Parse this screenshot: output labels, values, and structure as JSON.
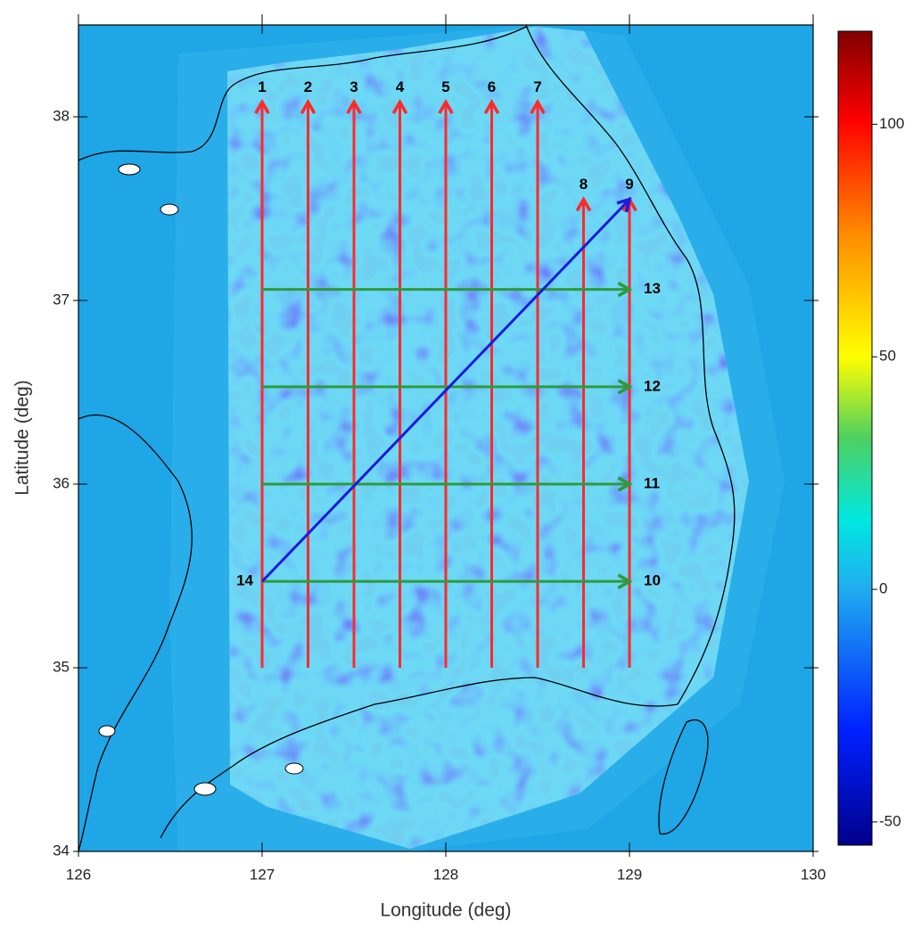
{
  "map": {
    "xlabel": "Longitude (deg)",
    "ylabel": "Latitude (deg)",
    "xlim": [
      126,
      130
    ],
    "ylim": [
      34,
      38.5
    ],
    "xticks": [
      126,
      127,
      128,
      129,
      130
    ],
    "yticks": [
      34,
      35,
      36,
      37,
      38
    ],
    "colorbar": {
      "clim": [
        -55,
        120
      ],
      "ticks": [
        -50,
        0,
        50,
        100
      ]
    },
    "profiles": [
      {
        "label": "1",
        "color": "#ff2a2a",
        "x": [
          127.0,
          127.0
        ],
        "y": [
          35.0,
          38.08
        ]
      },
      {
        "label": "2",
        "color": "#ff2a2a",
        "x": [
          127.25,
          127.25
        ],
        "y": [
          35.0,
          38.08
        ]
      },
      {
        "label": "3",
        "color": "#ff2a2a",
        "x": [
          127.5,
          127.5
        ],
        "y": [
          35.0,
          38.08
        ]
      },
      {
        "label": "4",
        "color": "#ff2a2a",
        "x": [
          127.75,
          127.75
        ],
        "y": [
          35.0,
          38.08
        ]
      },
      {
        "label": "5",
        "color": "#ff2a2a",
        "x": [
          128.0,
          128.0
        ],
        "y": [
          35.0,
          38.08
        ]
      },
      {
        "label": "6",
        "color": "#ff2a2a",
        "x": [
          128.25,
          128.25
        ],
        "y": [
          35.0,
          38.08
        ]
      },
      {
        "label": "7",
        "color": "#ff2a2a",
        "x": [
          128.5,
          128.5
        ],
        "y": [
          35.0,
          38.08
        ]
      },
      {
        "label": "8",
        "color": "#ff2a2a",
        "x": [
          128.75,
          128.75
        ],
        "y": [
          35.0,
          37.55
        ]
      },
      {
        "label": "9",
        "color": "#ff2a2a",
        "x": [
          129.0,
          129.0
        ],
        "y": [
          35.0,
          37.55
        ]
      },
      {
        "label": "10",
        "color": "#2e9a3a",
        "x": [
          127.0,
          129.0
        ],
        "y": [
          35.47,
          35.47
        ]
      },
      {
        "label": "11",
        "color": "#2e9a3a",
        "x": [
          127.0,
          129.0
        ],
        "y": [
          36.0,
          36.0
        ]
      },
      {
        "label": "12",
        "color": "#2e9a3a",
        "x": [
          127.0,
          129.0
        ],
        "y": [
          36.53,
          36.53
        ]
      },
      {
        "label": "13",
        "color": "#2e9a3a",
        "x": [
          127.0,
          129.0
        ],
        "y": [
          37.06,
          37.06
        ]
      },
      {
        "label": "14",
        "color": "#1a1ae0",
        "x": [
          127.0,
          129.0
        ],
        "y": [
          35.47,
          37.55
        ]
      }
    ]
  }
}
